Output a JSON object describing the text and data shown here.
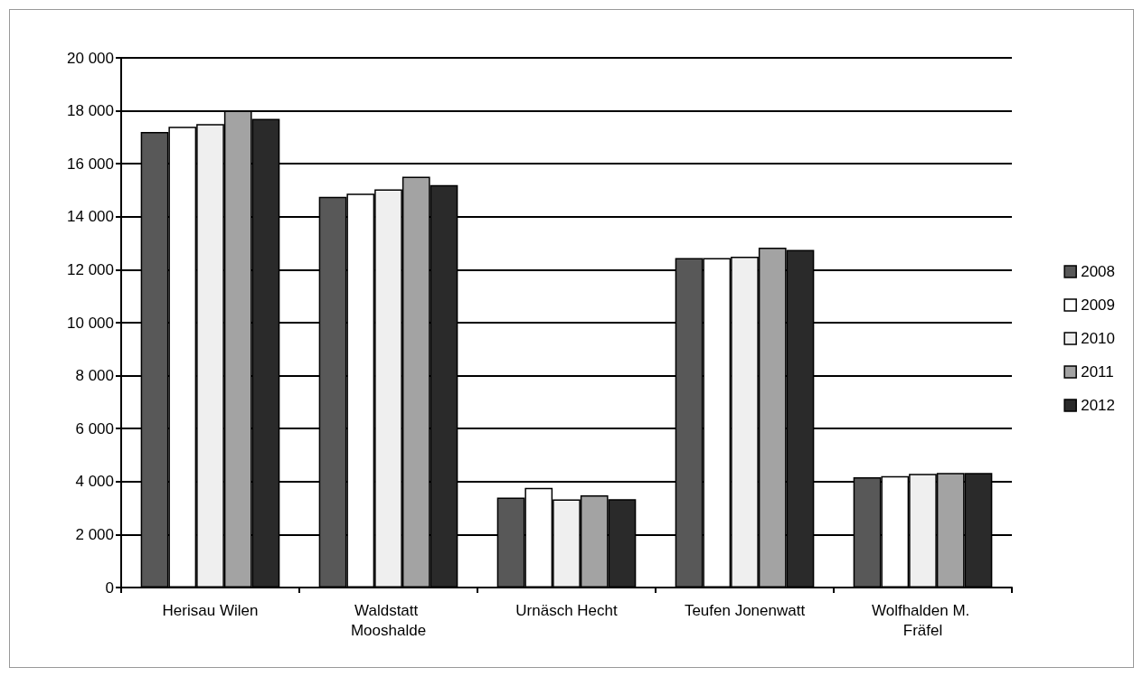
{
  "chart_data": {
    "type": "bar",
    "categories": [
      "Herisau Wilen",
      "Waldstatt Mooshalde",
      "Urnäsch Hecht",
      "Teufen Jonenwatt",
      "Wolfhalden M. Fräfel"
    ],
    "series": [
      {
        "name": "2008",
        "color": "#585858",
        "values": [
          17200,
          14750,
          3400,
          12440,
          4160
        ]
      },
      {
        "name": "2009",
        "color": "#ffffff",
        "values": [
          17400,
          14870,
          3760,
          12440,
          4210
        ]
      },
      {
        "name": "2010",
        "color": "#efefef",
        "values": [
          17500,
          15030,
          3330,
          12490,
          4290
        ]
      },
      {
        "name": "2011",
        "color": "#a3a3a3",
        "values": [
          18000,
          15510,
          3480,
          12830,
          4330
        ]
      },
      {
        "name": "2012",
        "color": "#2a2a2a",
        "values": [
          17700,
          15200,
          3340,
          12750,
          4330
        ]
      }
    ],
    "ylim": [
      0,
      20000
    ],
    "yticks": [
      0,
      {
        "value": 2000,
        "label": "2 000"
      },
      {
        "value": 4000,
        "label": "4 000"
      },
      {
        "value": 6000,
        "label": "6 000"
      },
      {
        "value": 8000,
        "label": "8 000"
      },
      {
        "value": 10000,
        "label": "10 000"
      },
      {
        "value": 12000,
        "label": "12 000"
      },
      {
        "value": 14000,
        "label": "14 000"
      },
      {
        "value": 16000,
        "label": "16 000"
      },
      {
        "value": 18000,
        "label": "18 000"
      },
      {
        "value": 20000,
        "label": "20 000"
      }
    ],
    "grid": "y",
    "legend": "right"
  }
}
